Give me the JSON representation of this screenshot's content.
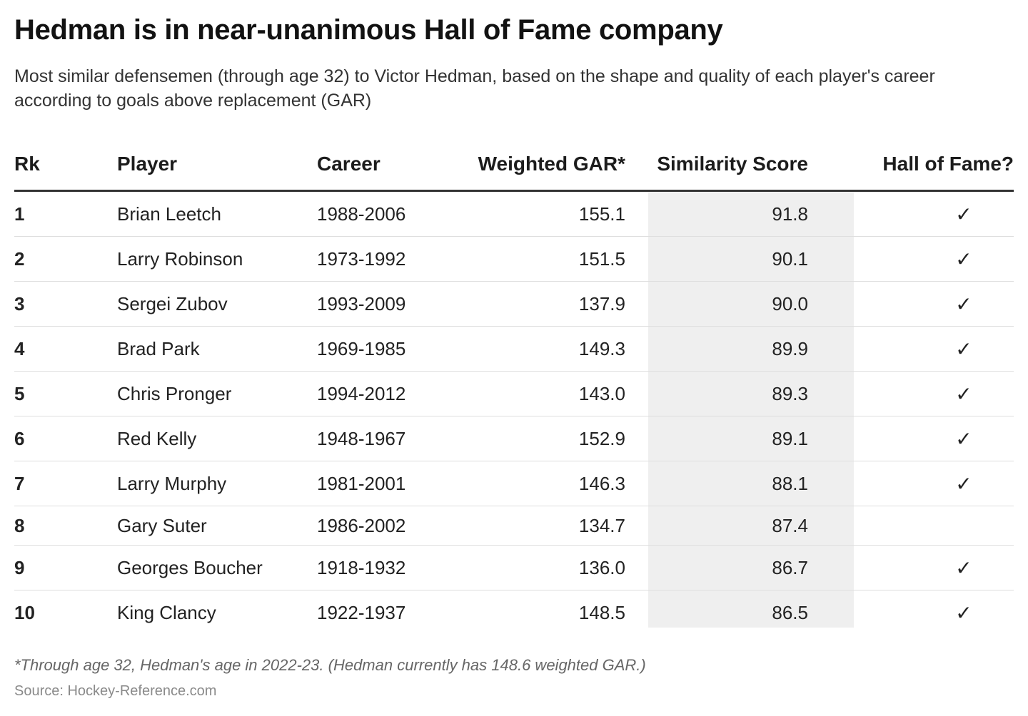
{
  "title": "Hedman is in near-unanimous Hall of Fame company",
  "subtitle": "Most similar defensemen (through age 32) to Victor Hedman, based on the shape and quality of each player's career according to goals above replacement (GAR)",
  "chart_data": {
    "type": "table",
    "columns": [
      "Rk",
      "Player",
      "Career",
      "Weighted GAR*",
      "Similarity Score",
      "Hall of Fame?"
    ],
    "highlighted_column": "Similarity Score",
    "highlight_color": "#efefef",
    "check_glyph": "✓",
    "rows": [
      {
        "rk": "1",
        "player": "Brian Leetch",
        "career": "1988-2006",
        "gar": "155.1",
        "similarity": "91.8",
        "hof": "✓"
      },
      {
        "rk": "2",
        "player": "Larry Robinson",
        "career": "1973-1992",
        "gar": "151.5",
        "similarity": "90.1",
        "hof": "✓"
      },
      {
        "rk": "3",
        "player": "Sergei Zubov",
        "career": "1993-2009",
        "gar": "137.9",
        "similarity": "90.0",
        "hof": "✓"
      },
      {
        "rk": "4",
        "player": "Brad Park",
        "career": "1969-1985",
        "gar": "149.3",
        "similarity": "89.9",
        "hof": "✓"
      },
      {
        "rk": "5",
        "player": "Chris Pronger",
        "career": "1994-2012",
        "gar": "143.0",
        "similarity": "89.3",
        "hof": "✓"
      },
      {
        "rk": "6",
        "player": "Red Kelly",
        "career": "1948-1967",
        "gar": "152.9",
        "similarity": "89.1",
        "hof": "✓"
      },
      {
        "rk": "7",
        "player": "Larry Murphy",
        "career": "1981-2001",
        "gar": "146.3",
        "similarity": "88.1",
        "hof": "✓"
      },
      {
        "rk": "8",
        "player": "Gary Suter",
        "career": "1986-2002",
        "gar": "134.7",
        "similarity": "87.4",
        "hof": ""
      },
      {
        "rk": "9",
        "player": "Georges Boucher",
        "career": "1918-1932",
        "gar": "136.0",
        "similarity": "86.7",
        "hof": "✓"
      },
      {
        "rk": "10",
        "player": "King Clancy",
        "career": "1922-1937",
        "gar": "148.5",
        "similarity": "86.5",
        "hof": "✓"
      }
    ]
  },
  "footnote": "*Through age 32, Hedman's age in 2022-23. (Hedman currently has 148.6 weighted GAR.)",
  "source": "Source: Hockey-Reference.com"
}
